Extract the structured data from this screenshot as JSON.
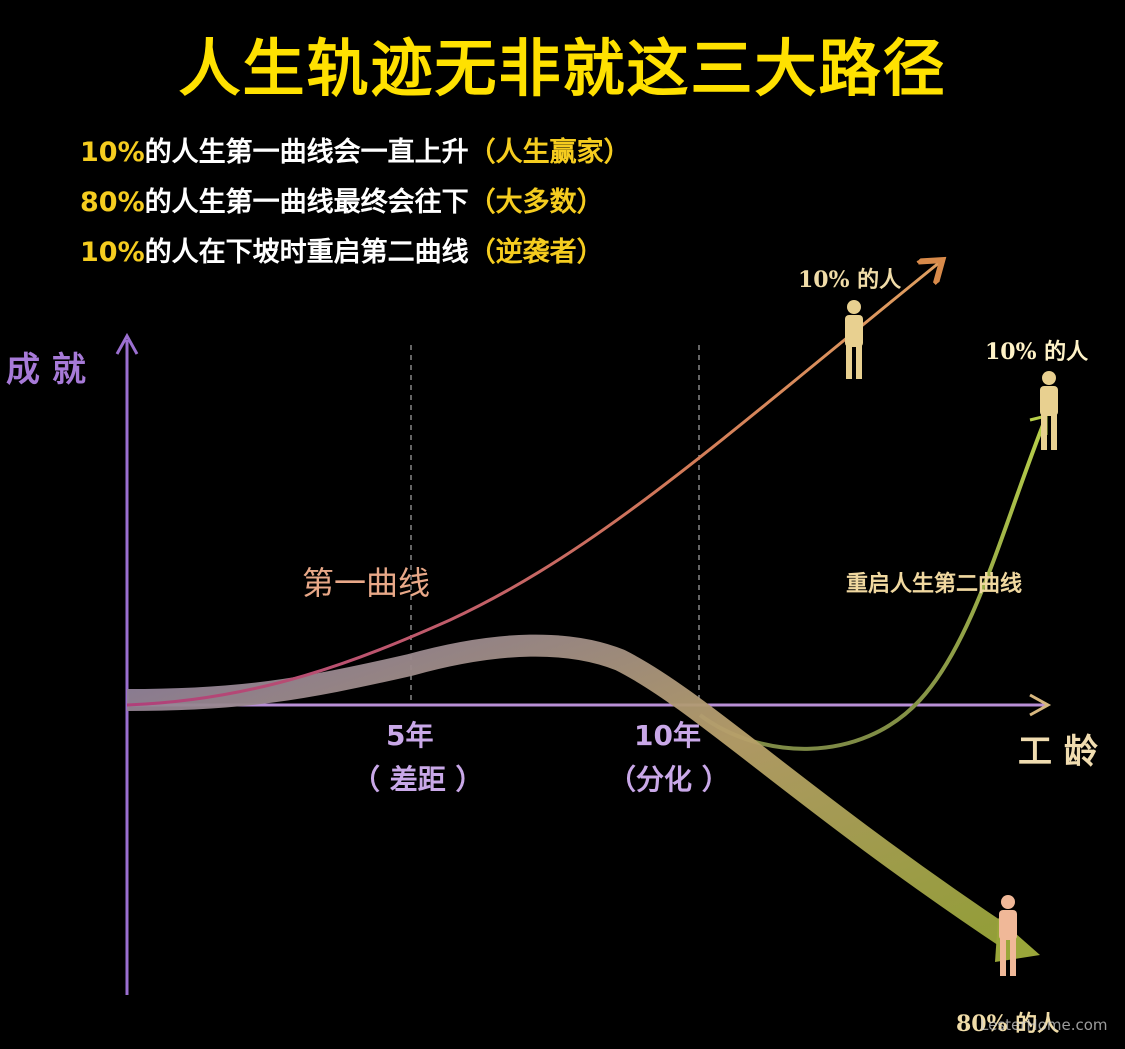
{
  "title": "人生轨迹无非就这三大路径",
  "statements": [
    {
      "percent": "10%",
      "text": "的人生第一曲线会一直上升",
      "tag": "（人生赢家）"
    },
    {
      "percent": "80%",
      "text": "的人生第一曲线最终会往下",
      "tag": "（大多数）"
    },
    {
      "percent": "10%",
      "text": "的人在下坡时重启第二曲线",
      "tag": "（逆袭者）"
    }
  ],
  "axes": {
    "y_label": "成 就",
    "x_label": "工 龄"
  },
  "milestones": [
    {
      "label": "5年",
      "note": "（ 差距 ）"
    },
    {
      "label": "10年",
      "note": "（分化 ）"
    }
  ],
  "curves": {
    "first_curve": "第一曲线",
    "second_curve": "重启人生第二曲线"
  },
  "outcomes": {
    "top": "10% 的人",
    "right": "10% 的人",
    "bottom": "80% 的人"
  },
  "watermark": "LesterHome.com",
  "colors": {
    "title": "#ffe100",
    "axis": "#9b6fd0",
    "first_curve": "#d06a5a",
    "second_curve": "#a8c84a",
    "decline_band": "#b8a868"
  }
}
